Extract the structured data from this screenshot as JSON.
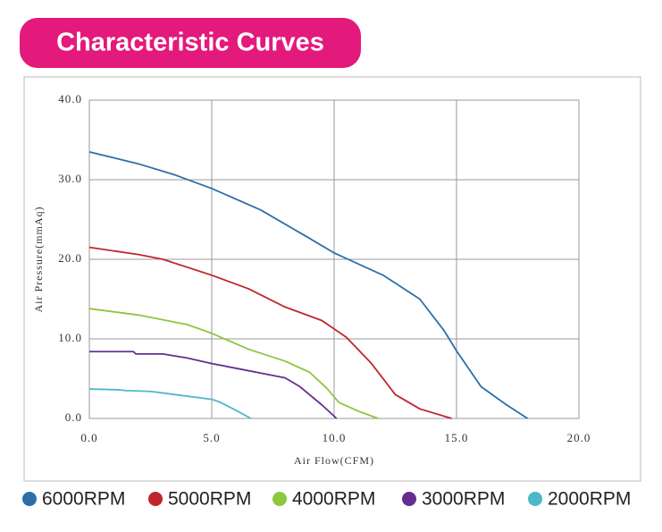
{
  "chart_data": {
    "type": "line",
    "title": "Characteristic Curves",
    "x_label": "Air Flow(CFM)",
    "y_label": "Air Pressure(mmAq)",
    "xlim": [
      0,
      20
    ],
    "ylim": [
      0,
      40
    ],
    "xticks": [
      {
        "value": 0,
        "label": "0.0"
      },
      {
        "value": 5,
        "label": "5.0"
      },
      {
        "value": 10,
        "label": "10.0"
      },
      {
        "value": 15,
        "label": "15.0"
      },
      {
        "value": 20,
        "label": "20.0"
      }
    ],
    "yticks": [
      {
        "value": 0,
        "label": "0.0"
      },
      {
        "value": 10,
        "label": "10.0"
      },
      {
        "value": 20,
        "label": "20.0"
      },
      {
        "value": 30,
        "label": "30.0"
      },
      {
        "value": 40,
        "label": "40.0"
      }
    ],
    "grid": true,
    "legend": "bottom",
    "series": [
      {
        "name": "6000RPM",
        "color": "#2c6fa8",
        "x": [
          0,
          2,
          3.5,
          5,
          7,
          8.9,
          10,
          12,
          13.5,
          14.5,
          15,
          16,
          17,
          17.9
        ],
        "values": [
          33.5,
          32,
          30.6,
          28.9,
          26.2,
          22.8,
          20.8,
          18,
          15,
          11,
          8.5,
          4,
          1.8,
          0
        ]
      },
      {
        "name": "5000RPM",
        "color": "#c0262e",
        "x": [
          0,
          2,
          3,
          5,
          6.5,
          8,
          9.5,
          10.5,
          11.5,
          12.5,
          13.5,
          14.8
        ],
        "values": [
          21.5,
          20.6,
          20,
          18,
          16.3,
          14,
          12.3,
          10.2,
          7,
          3,
          1.2,
          0
        ]
      },
      {
        "name": "4000RPM",
        "color": "#8dc63f",
        "x": [
          0,
          2,
          4,
          5,
          6.5,
          8,
          9,
          9.7,
          10.2,
          11,
          11.8
        ],
        "values": [
          13.8,
          13,
          11.8,
          10.7,
          8.7,
          7.2,
          5.8,
          3.8,
          2,
          0.9,
          0
        ]
      },
      {
        "name": "3000RPM",
        "color": "#662d91",
        "x": [
          0,
          1.8,
          1.9,
          3,
          4,
          5,
          6,
          7,
          8,
          8.6,
          9.5,
          10.1
        ],
        "values": [
          8.4,
          8.4,
          8.1,
          8.1,
          7.6,
          6.9,
          6.3,
          5.7,
          5.1,
          4,
          1.7,
          0
        ]
      },
      {
        "name": "2000RPM",
        "color": "#4db8c8",
        "x": [
          0,
          1.2,
          1.5,
          2.5,
          3.5,
          5,
          5.3,
          6,
          6.6
        ],
        "values": [
          3.7,
          3.6,
          3.5,
          3.4,
          3,
          2.4,
          2.1,
          1,
          0
        ]
      }
    ]
  }
}
